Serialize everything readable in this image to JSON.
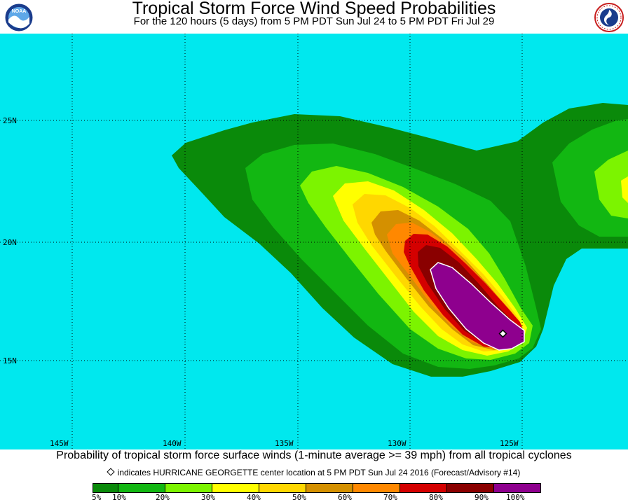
{
  "header": {
    "title": "Tropical Storm Force Wind Speed Probabilities",
    "subtitle": "For the 120 hours (5 days) from 5 PM PDT Sun Jul 24 to 5 PM PDT Fri Jul 29"
  },
  "logos": {
    "left": {
      "icon": "noaa-logo",
      "text": "NOAA"
    },
    "right": {
      "icon": "nws-logo"
    }
  },
  "map": {
    "ocean_color": "#00e8ee",
    "lat_labels": [
      "25N",
      "20N",
      "15N"
    ],
    "lon_labels": [
      "145W",
      "140W",
      "135W",
      "130W",
      "125W"
    ],
    "storm_center": {
      "lat": 16.1,
      "lon": -125.6
    }
  },
  "footer": {
    "caption": "Probability of tropical storm force surface winds (1-minute average >= 39 mph) from all tropical cyclones",
    "note": "indicates HURRICANE GEORGETTE center location at 5 PM PDT Sun Jul 24 2016 (Forecast/Advisory #14)"
  },
  "legend": {
    "labels": [
      "5%",
      "10%",
      "20%",
      "30%",
      "40%",
      "50%",
      "60%",
      "70%",
      "80%",
      "90%",
      "100%"
    ],
    "colors": [
      "#0a8a0a",
      "#12b712",
      "#22d822",
      "#7cf400",
      "#ffff00",
      "#ffd700",
      "#d49000",
      "#ff8800",
      "#d40000",
      "#8a0000",
      "#8e008e"
    ]
  }
}
